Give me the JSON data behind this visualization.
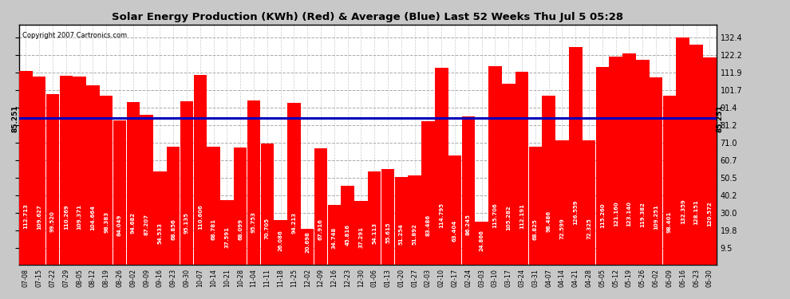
{
  "title": "Solar Energy Production (KWh) (Red) & Average (Blue) Last 52 Weeks Thu Jul 5 05:28",
  "copyright": "Copyright 2007 Cartronics.com",
  "bar_color": "#ff0000",
  "average_color": "#0000bb",
  "background_color": "#c8c8c8",
  "plot_bg_color": "#ffffff",
  "average_value": 85.251,
  "ylim_max": 140,
  "yticks": [
    9.5,
    19.8,
    30.0,
    40.2,
    50.5,
    60.7,
    71.0,
    81.2,
    91.4,
    101.7,
    111.9,
    122.2,
    132.4
  ],
  "dates": [
    "07-08",
    "07-15",
    "07-22",
    "07-29",
    "08-05",
    "08-12",
    "08-19",
    "08-26",
    "09-02",
    "09-09",
    "09-16",
    "09-23",
    "09-30",
    "10-07",
    "10-14",
    "10-21",
    "10-28",
    "11-04",
    "11-11",
    "11-18",
    "11-25",
    "12-02",
    "12-09",
    "12-16",
    "12-23",
    "12-30",
    "01-06",
    "01-13",
    "01-20",
    "01-27",
    "02-03",
    "02-10",
    "02-17",
    "02-24",
    "03-03",
    "03-10",
    "03-17",
    "03-24",
    "03-31",
    "04-07",
    "04-14",
    "04-21",
    "04-28",
    "05-05",
    "05-12",
    "05-19",
    "05-26",
    "06-02",
    "06-09",
    "06-16",
    "06-23",
    "06-30"
  ],
  "values": [
    112.713,
    109.627,
    99.52,
    110.269,
    109.371,
    104.664,
    98.383,
    84.049,
    94.682,
    87.207,
    54.533,
    68.856,
    95.135,
    110.606,
    68.781,
    37.591,
    68.099,
    95.753,
    70.705,
    26.086,
    94.213,
    20.698,
    67.916,
    34.748,
    45.816,
    37.291,
    54.113,
    55.615,
    51.254,
    51.892,
    83.486,
    114.795,
    63.404,
    86.245,
    24.866,
    115.706,
    105.282,
    112.191,
    68.825,
    98.486,
    72.599,
    126.559,
    72.325,
    115.26,
    121.16,
    123.14,
    119.382,
    109.251,
    98.401,
    132.359,
    128.151,
    120.572
  ]
}
